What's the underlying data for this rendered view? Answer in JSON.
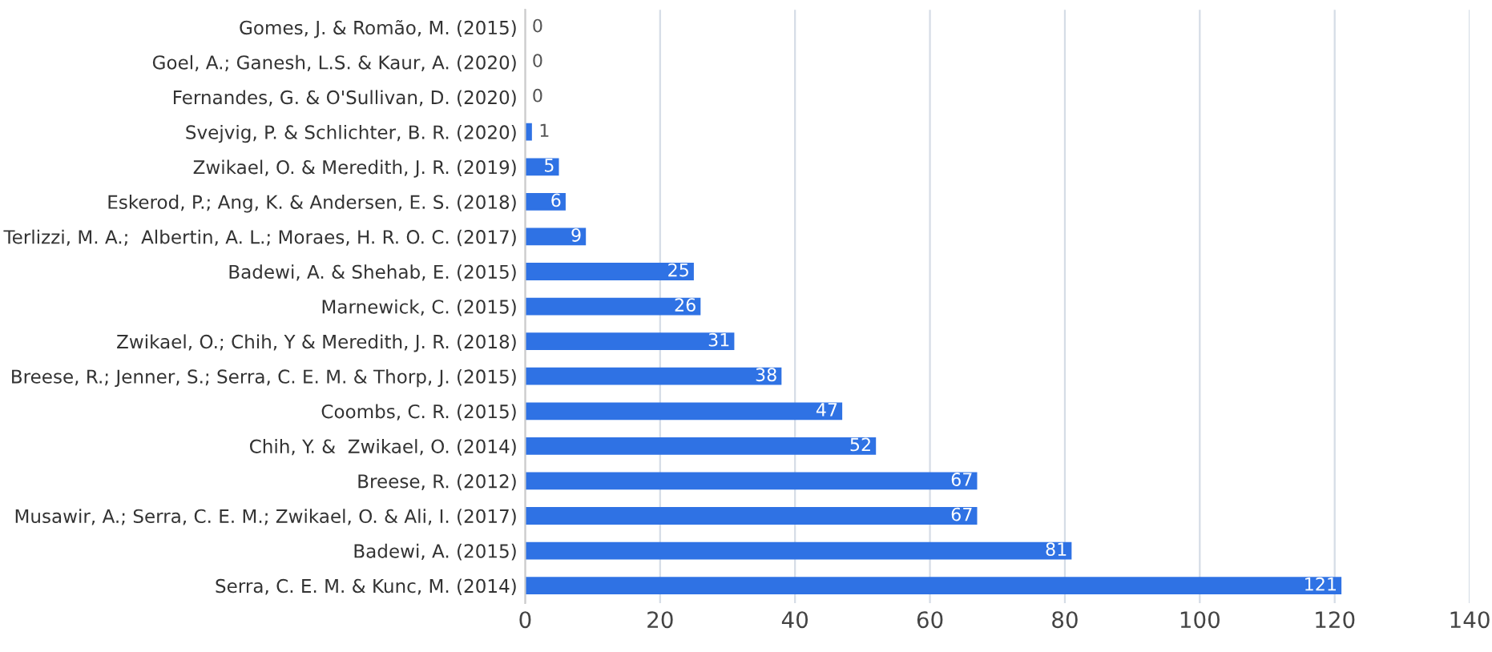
{
  "chart_data": {
    "type": "bar",
    "orientation": "horizontal",
    "categories": [
      "Gomes, J. & Romão, M. (2015)",
      "Goel, A.; Ganesh, L.S. & Kaur, A. (2020)",
      "Fernandes, G. & O'Sullivan, D. (2020)",
      "Svejvig, P. & Schlichter, B. R. (2020)",
      "Zwikael, O. & Meredith, J. R. (2019)",
      "Eskerod, P.; Ang, K. & Andersen, E. S. (2018)",
      "Terlizzi, M. A.;  Albertin, A. L.; Moraes, H. R. O. C. (2017)",
      "Badewi, A. & Shehab, E. (2015)",
      "Marnewick, C. (2015)",
      "Zwikael, O.; Chih, Y & Meredith, J. R. (2018)",
      "Breese, R.; Jenner, S.; Serra, C. E. M. & Thorp, J. (2015)",
      "Coombs, C. R. (2015)",
      "Chih, Y. &  Zwikael, O. (2014)",
      "Breese, R. (2012)",
      "Musawir, A.; Serra, C. E. M.; Zwikael, O. & Ali, I. (2017)",
      "Badewi, A. (2015)",
      "Serra, C. E. M. & Kunc, M. (2014)"
    ],
    "values": [
      0,
      0,
      0,
      1,
      5,
      6,
      9,
      25,
      26,
      31,
      38,
      47,
      52,
      67,
      67,
      81,
      121
    ],
    "color": "#2f72e4",
    "xlim": [
      0,
      140
    ],
    "xticks": [
      0,
      20,
      40,
      60,
      80,
      100,
      120,
      140
    ],
    "grid": "x",
    "data_labels": true
  }
}
